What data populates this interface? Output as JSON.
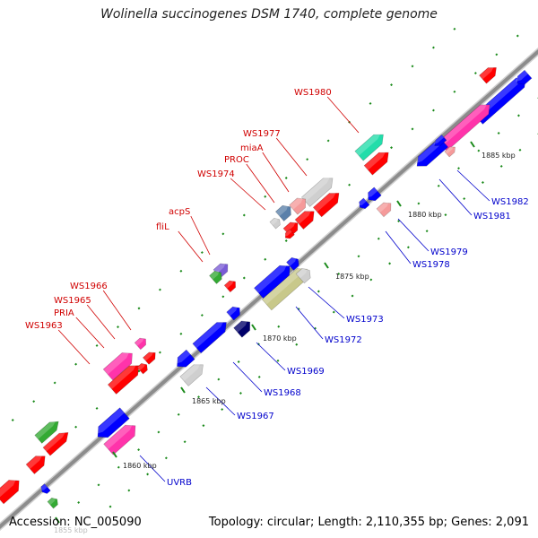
{
  "title": "Wolinella succinogenes DSM 1740, complete genome",
  "accession": "Accession: NC_005090",
  "summary": "Topology: circular; Length: 2,110,355 bp; Genes: 2,091",
  "colors": {
    "backbone": "#8c8c8c",
    "tick": "#1a8a1a",
    "label_red": "#d00000",
    "label_blue": "#0000cc",
    "red": "#ff0000",
    "blue": "#0000ff",
    "pink": "#ff33aa",
    "salmon": "#f59a9a",
    "gray": "#cfcfcf",
    "green": "#33aa33",
    "teal": "#22ddaa",
    "olive": "#c8c88a",
    "navy": "#00006a",
    "purple": "#7a5cd6",
    "steel": "#5a80aa"
  },
  "position_labels": [
    "1855 kbp",
    "1860 kbp",
    "1865 kbp",
    "1870 kbp",
    "1875 kbp",
    "1880 kbp",
    "1885 kbp"
  ],
  "gene_labels": [
    {
      "name": "WS1980",
      "color": "red"
    },
    {
      "name": "WS1977",
      "color": "red"
    },
    {
      "name": "miaA",
      "color": "red"
    },
    {
      "name": "PROC",
      "color": "red"
    },
    {
      "name": "WS1974",
      "color": "red"
    },
    {
      "name": "acpS",
      "color": "red"
    },
    {
      "name": "fliL",
      "color": "red"
    },
    {
      "name": "WS1966",
      "color": "red"
    },
    {
      "name": "WS1965",
      "color": "red"
    },
    {
      "name": "PRIA",
      "color": "red"
    },
    {
      "name": "WS1963",
      "color": "red"
    },
    {
      "name": "WS1982",
      "color": "blue"
    },
    {
      "name": "WS1981",
      "color": "blue"
    },
    {
      "name": "WS1979",
      "color": "blue"
    },
    {
      "name": "WS1978",
      "color": "blue"
    },
    {
      "name": "WS1973",
      "color": "blue"
    },
    {
      "name": "WS1972",
      "color": "blue"
    },
    {
      "name": "WS1969",
      "color": "blue"
    },
    {
      "name": "WS1968",
      "color": "blue"
    },
    {
      "name": "WS1967",
      "color": "blue"
    },
    {
      "name": "UVRB",
      "color": "blue"
    }
  ]
}
